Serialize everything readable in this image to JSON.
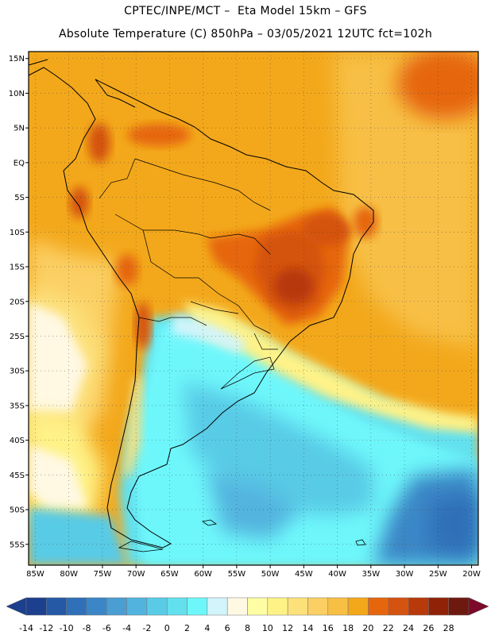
{
  "header": {
    "line1": "CPTEC/INPE/MCT –  Eta Model 15km – GFS",
    "line2": "Absolute Temperature (C) 850hPa – 03/05/2021 12UTC fct=102h"
  },
  "map": {
    "lat_labels": [
      "15N",
      "10N",
      "5N",
      "EQ",
      "5S",
      "10S",
      "15S",
      "20S",
      "25S",
      "30S",
      "35S",
      "40S",
      "45S",
      "50S",
      "55S"
    ],
    "lon_labels": [
      "85W",
      "80W",
      "75W",
      "70W",
      "65W",
      "60W",
      "55W",
      "50W",
      "45W",
      "40W",
      "35W",
      "30W",
      "25W",
      "20W"
    ],
    "lat_range": [
      -58,
      16
    ],
    "lon_range": [
      -86,
      -19
    ],
    "gridlines": "dotted"
  },
  "legend": {
    "labels": [
      "-14",
      "-12",
      "-10",
      "-8",
      "-6",
      "-4",
      "-2",
      "0",
      "2",
      "4",
      "6",
      "8",
      "10",
      "12",
      "14",
      "16",
      "18",
      "20",
      "22",
      "24",
      "26",
      "28"
    ],
    "colors": [
      "#1c3f8e",
      "#2559a6",
      "#2f70b8",
      "#3a86c6",
      "#4a9ed2",
      "#52b4de",
      "#59cbe6",
      "#62e0ee",
      "#6ef7fb",
      "#d2f4fb",
      "#fff8e3",
      "#fefda4",
      "#fef287",
      "#fce17b",
      "#fbcf64",
      "#f7bf44",
      "#f3a81b",
      "#e6660e",
      "#d45311",
      "#b83909",
      "#8f2207",
      "#6e190f"
    ]
  }
}
